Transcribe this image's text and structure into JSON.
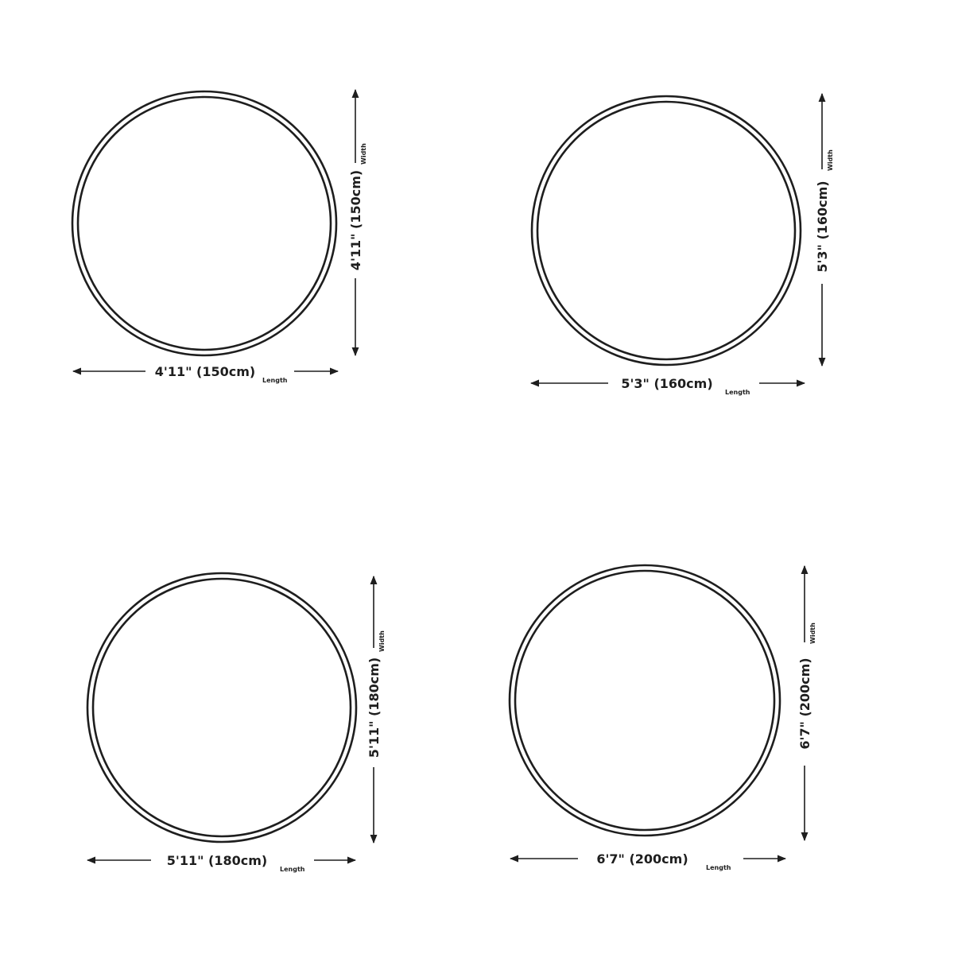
{
  "rugs": [
    {
      "length_label": "4'11\" (150cm)",
      "width_label": "4'11\" (150cm)",
      "length_caption": "Length",
      "width_caption": "Width"
    },
    {
      "length_label": "5'3\" (160cm)",
      "width_label": "5'3\" (160cm)",
      "length_caption": "Length",
      "width_caption": "Width"
    },
    {
      "length_label": "5'11\" (180cm)",
      "width_label": "5'11\" (180cm)",
      "length_caption": "Length",
      "width_caption": "Width"
    },
    {
      "length_label": "6'7\" (200cm)",
      "width_label": "6'7\" (200cm)",
      "length_caption": "Length",
      "width_caption": "Width"
    }
  ],
  "colors": {
    "line": "#1e1e1e",
    "background": "#ffffff"
  }
}
